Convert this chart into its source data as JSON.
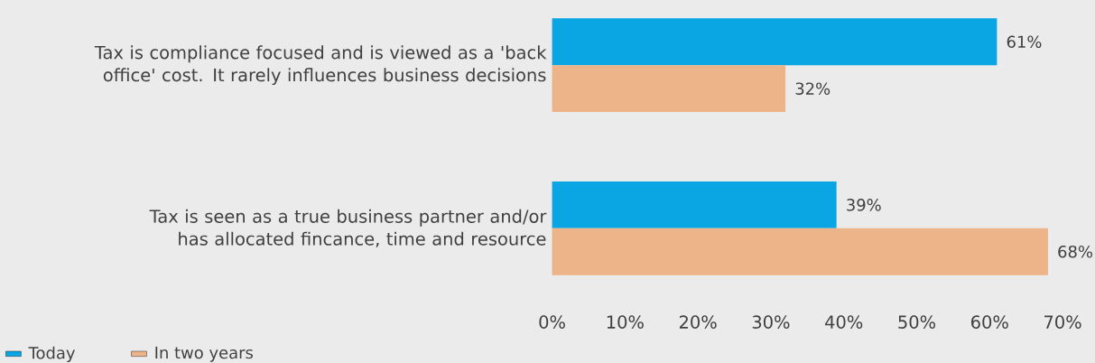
{
  "chart_data": {
    "type": "bar",
    "orientation": "horizontal",
    "categories": [
      "Tax is compliance focused and is viewed as a 'back office' cost. It rarely influences business decisions",
      "Tax is seen as a true business partner and/or has allocated fincance, time and resource"
    ],
    "series": [
      {
        "name": "Today",
        "color": "#0aa5e3",
        "values": [
          61,
          39
        ],
        "value_labels": [
          "61%",
          "39%"
        ]
      },
      {
        "name": "In two years",
        "color": "#edb48a",
        "values": [
          32,
          68
        ],
        "value_labels": [
          "32%",
          "68%"
        ]
      }
    ],
    "xlim": [
      0,
      70
    ],
    "xticks": [
      {
        "value": 0,
        "label": "0%"
      },
      {
        "value": 10,
        "label": "10%"
      },
      {
        "value": 20,
        "label": "20%"
      },
      {
        "value": 30,
        "label": "30%"
      },
      {
        "value": 40,
        "label": "40%"
      },
      {
        "value": 50,
        "label": "50%"
      },
      {
        "value": 60,
        "label": "60%"
      },
      {
        "value": 70,
        "label": "70%"
      }
    ],
    "legend": "bottom left"
  }
}
